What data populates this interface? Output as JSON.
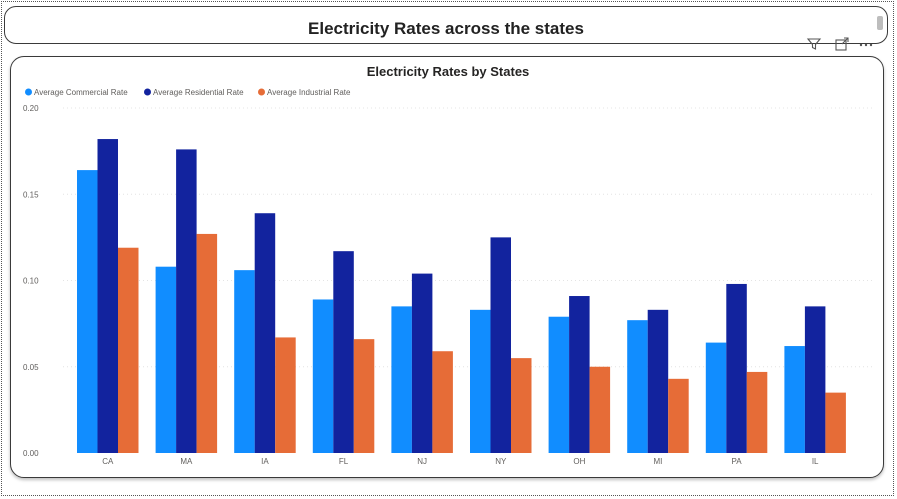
{
  "page": {
    "heading": "Electricity Rates across the states"
  },
  "toolbar": {
    "filter_icon": "filter-icon",
    "focus_icon": "focus-mode-icon",
    "more_icon": "more-options-icon"
  },
  "colors": {
    "commercial": "#118DFF",
    "residential": "#12239E",
    "industrial": "#E66C37",
    "grid": "#e4e4e4"
  },
  "chart_data": {
    "type": "bar",
    "title": "Electricity Rates by States",
    "xlabel": "",
    "ylabel": "",
    "ylim": [
      0,
      0.2
    ],
    "yticks": [
      "0.00",
      "0.05",
      "0.10",
      "0.15",
      "0.20"
    ],
    "ytick_values": [
      0,
      0.05,
      0.1,
      0.15,
      0.2
    ],
    "categories": [
      "CA",
      "MA",
      "IA",
      "FL",
      "NJ",
      "NY",
      "OH",
      "MI",
      "PA",
      "IL"
    ],
    "legend_position": "top-left",
    "series": [
      {
        "name": "Average Commercial Rate",
        "values": [
          0.164,
          0.108,
          0.106,
          0.089,
          0.085,
          0.083,
          0.079,
          0.077,
          0.064,
          0.062
        ]
      },
      {
        "name": "Average Residential Rate",
        "values": [
          0.182,
          0.176,
          0.139,
          0.117,
          0.104,
          0.125,
          0.091,
          0.083,
          0.098,
          0.085
        ]
      },
      {
        "name": "Average Industrial Rate",
        "values": [
          0.119,
          0.127,
          0.067,
          0.066,
          0.059,
          0.055,
          0.05,
          0.043,
          0.047,
          0.035
        ]
      }
    ]
  }
}
